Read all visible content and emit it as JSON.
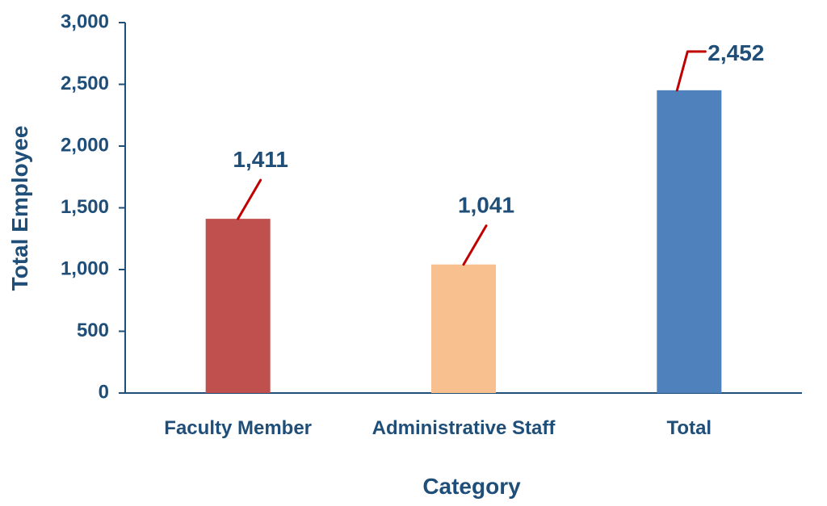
{
  "chart_data": {
    "type": "bar",
    "title": "",
    "xlabel": "Category",
    "ylabel": "Total Employee",
    "categories": [
      "Faculty Member",
      "Administrative Staff",
      "Total"
    ],
    "values": [
      1411,
      1041,
      2452
    ],
    "value_labels": [
      "1,411",
      "1,041",
      "2,452"
    ],
    "bar_colors": [
      "#c0504d",
      "#f8c08f",
      "#4f81bd"
    ],
    "ylim": [
      0,
      3000
    ],
    "yticks": [
      0,
      500,
      1000,
      1500,
      2000,
      2500,
      3000
    ],
    "ytick_labels": [
      "0",
      "500",
      "1,000",
      "1,500",
      "2,000",
      "2,500",
      "3,000"
    ],
    "grid": false,
    "legend": "none",
    "axis_color": "#1f4e79",
    "text_color": "#1f4e79",
    "leader_line_color": "#c00000"
  }
}
